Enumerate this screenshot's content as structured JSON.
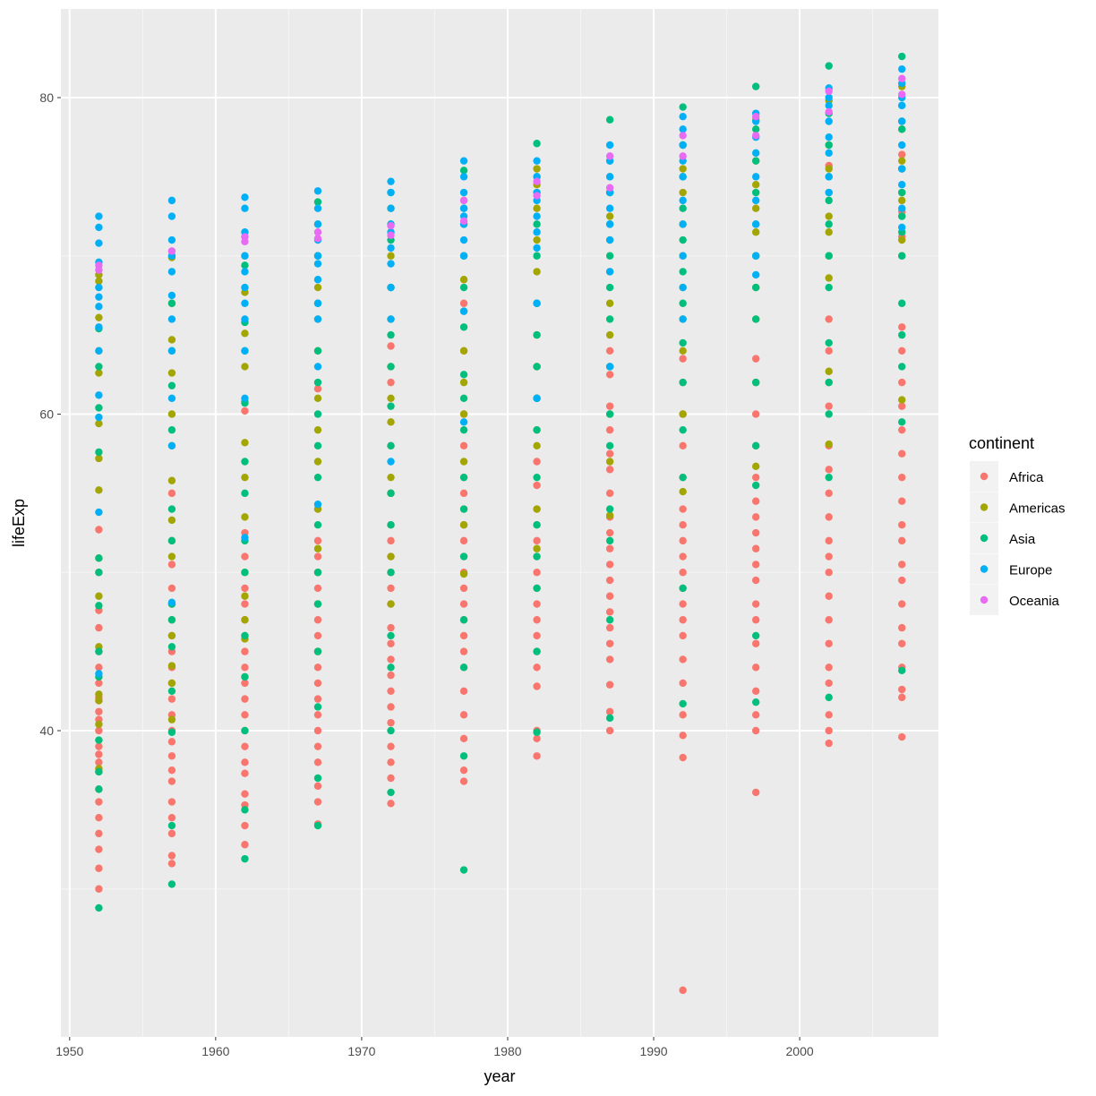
{
  "chart_data": {
    "type": "scatter",
    "title": "",
    "xlabel": "year",
    "ylabel": "lifeExp",
    "xlim": [
      1949.4,
      2009.5
    ],
    "ylim": [
      20.65,
      85.6
    ],
    "x_ticks": [
      1950,
      1960,
      1970,
      1980,
      1990,
      2000
    ],
    "y_ticks": [
      40,
      60,
      80
    ],
    "grid": true,
    "legend": {
      "title": "continent",
      "position": "right"
    },
    "years": [
      1952,
      1957,
      1962,
      1967,
      1972,
      1977,
      1982,
      1987,
      1992,
      1997,
      2002,
      2007
    ],
    "series": [
      {
        "name": "Africa",
        "color": "#F8766D",
        "points_by_year": {
          "1952": [
            30.0,
            31.3,
            32.5,
            33.5,
            34.5,
            35.5,
            36.3,
            37.4,
            38.0,
            38.5,
            39.0,
            40.0,
            40.7,
            41.2,
            41.9,
            42.1,
            43.0,
            44.0,
            45.0,
            46.5,
            47.6,
            50.0,
            52.7
          ],
          "1957": [
            31.6,
            32.1,
            33.5,
            34.5,
            35.5,
            36.8,
            37.5,
            38.4,
            39.3,
            40.0,
            41.0,
            42.0,
            43.0,
            44.0,
            45.0,
            46.0,
            47.0,
            48.0,
            49.0,
            50.5,
            52.0,
            55.0
          ],
          "1962": [
            32.8,
            34.0,
            35.3,
            36.0,
            37.3,
            38.0,
            39.0,
            40.0,
            41.0,
            42.0,
            43.0,
            44.0,
            45.0,
            46.0,
            47.0,
            48.0,
            49.0,
            51.0,
            52.5,
            60.2
          ],
          "1967": [
            34.1,
            35.5,
            36.5,
            38.0,
            39.0,
            40.0,
            41.0,
            42.0,
            43.0,
            44.0,
            45.0,
            46.0,
            47.0,
            48.0,
            49.0,
            50.0,
            51.0,
            52.0,
            54.0,
            61.6
          ],
          "1972": [
            35.4,
            37.0,
            38.0,
            39.0,
            40.5,
            41.5,
            42.5,
            43.5,
            44.5,
            45.5,
            46.5,
            48.0,
            49.0,
            50.0,
            51.0,
            52.0,
            53.0,
            55.0,
            58.0,
            62.0,
            64.3
          ],
          "1977": [
            36.8,
            37.5,
            39.5,
            41.0,
            42.5,
            44.0,
            45.0,
            46.0,
            47.0,
            48.0,
            49.0,
            50.0,
            51.0,
            52.0,
            53.0,
            54.0,
            55.0,
            56.0,
            58.0,
            60.0,
            64.0,
            67.0
          ],
          "1982": [
            38.4,
            39.5,
            40.0,
            42.8,
            44.0,
            45.0,
            46.0,
            47.0,
            48.0,
            49.0,
            50.0,
            51.0,
            52.0,
            53.0,
            54.0,
            55.5,
            57.0,
            59.0,
            61.0,
            63.0
          ],
          "1987": [
            40.0,
            41.2,
            42.9,
            44.5,
            45.5,
            46.5,
            47.5,
            48.5,
            49.5,
            50.5,
            51.5,
            52.5,
            53.5,
            55.0,
            56.5,
            57.5,
            59.0,
            60.5,
            62.5,
            64.0
          ],
          "1992": [
            23.6,
            38.3,
            39.7,
            41.0,
            43.0,
            44.5,
            46.0,
            47.0,
            48.0,
            49.0,
            50.0,
            51.0,
            52.0,
            53.0,
            54.0,
            56.0,
            58.0,
            60.0,
            62.0,
            63.5
          ],
          "1997": [
            36.1,
            40.0,
            41.0,
            42.5,
            44.0,
            45.5,
            47.0,
            48.0,
            49.5,
            50.5,
            51.5,
            52.5,
            53.5,
            54.5,
            56.0,
            58.0,
            60.0,
            63.5
          ],
          "2002": [
            39.2,
            40.0,
            41.0,
            43.0,
            44.0,
            45.5,
            47.0,
            48.5,
            50.0,
            51.0,
            52.0,
            53.5,
            55.0,
            56.5,
            58.0,
            60.5,
            62.0,
            64.0,
            66.0,
            75.7
          ],
          "2007": [
            39.6,
            42.1,
            42.6,
            44.0,
            45.5,
            46.5,
            48.0,
            49.5,
            50.5,
            52.0,
            53.0,
            54.5,
            56.0,
            57.5,
            59.0,
            60.5,
            62.0,
            64.0,
            65.5,
            71.2,
            72.8,
            76.4
          ]
        }
      },
      {
        "name": "Americas",
        "color": "#A3A500",
        "points_by_year": {
          "1952": [
            37.6,
            40.4,
            41.9,
            42.3,
            45.3,
            48.5,
            50.9,
            55.2,
            57.2,
            59.4,
            62.6,
            64.0,
            66.1,
            68.4,
            68.8
          ],
          "1957": [
            40.7,
            43.0,
            44.1,
            46.0,
            48.0,
            51.0,
            53.3,
            55.8,
            58.0,
            60.0,
            62.6,
            64.7,
            67.0,
            69.9,
            70.0
          ],
          "1962": [
            43.4,
            45.8,
            47.0,
            48.5,
            50.0,
            53.5,
            56.0,
            58.2,
            60.8,
            63.0,
            65.1,
            67.7,
            70.0
          ],
          "1967": [
            45.0,
            48.0,
            50.0,
            51.5,
            54.0,
            57.0,
            59.0,
            61.0,
            64.0,
            66.0,
            68.0,
            70.0,
            72.0
          ],
          "1972": [
            48.0,
            51.0,
            55.0,
            56.0,
            59.5,
            61.0,
            63.0,
            66.0,
            68.0,
            70.0,
            72.0,
            73.0
          ],
          "1977": [
            49.9,
            53.0,
            57.0,
            60.0,
            62.0,
            64.0,
            66.5,
            68.5,
            70.0,
            72.0,
            73.5
          ],
          "1982": [
            51.5,
            54.0,
            58.0,
            61.0,
            63.0,
            65.0,
            67.0,
            69.0,
            71.0,
            73.0,
            74.5,
            75.5
          ],
          "1987": [
            53.6,
            57.0,
            60.0,
            63.0,
            65.0,
            67.0,
            69.0,
            71.0,
            72.5,
            74.0,
            75.0
          ],
          "1992": [
            55.1,
            60.0,
            64.0,
            66.0,
            68.0,
            70.0,
            72.0,
            74.0,
            75.5,
            77.0
          ],
          "1997": [
            56.7,
            62.0,
            66.0,
            68.0,
            70.0,
            71.5,
            73.0,
            74.5,
            76.0,
            78.6
          ],
          "2002": [
            58.1,
            62.7,
            68.6,
            70.0,
            71.5,
            72.5,
            74.0,
            75.5,
            77.0,
            79.8
          ],
          "2007": [
            60.9,
            70.0,
            71.0,
            72.5,
            73.5,
            74.0,
            75.5,
            76.0,
            78.0,
            78.5,
            80.7
          ]
        }
      },
      {
        "name": "Asia",
        "color": "#00BF7D",
        "points_by_year": {
          "1952": [
            28.8,
            36.3,
            37.4,
            39.4,
            43.4,
            45.0,
            47.9,
            50.0,
            50.9,
            57.6,
            60.4,
            63.0,
            65.4
          ],
          "1957": [
            30.3,
            34.0,
            39.9,
            42.5,
            45.3,
            47.0,
            48.0,
            52.0,
            54.0,
            59.0,
            61.8,
            64.0,
            67.0
          ],
          "1962": [
            31.9,
            35.0,
            40.0,
            43.4,
            46.0,
            50.0,
            52.0,
            55.0,
            57.0,
            60.7,
            64.0,
            65.8,
            69.4
          ],
          "1967": [
            34.0,
            37.0,
            41.5,
            45.0,
            48.0,
            50.0,
            53.0,
            56.0,
            58.0,
            60.0,
            62.0,
            64.0,
            67.0,
            70.0,
            73.4
          ],
          "1972": [
            36.1,
            40.0,
            44.0,
            46.0,
            50.0,
            53.0,
            55.0,
            58.0,
            60.5,
            63.0,
            65.0,
            68.0,
            71.0,
            74.0
          ],
          "1977": [
            31.2,
            38.4,
            44.0,
            47.0,
            51.0,
            54.0,
            56.0,
            59.0,
            61.0,
            62.5,
            65.5,
            68.0,
            70.0,
            73.0,
            75.4
          ],
          "1982": [
            39.9,
            45.0,
            49.0,
            51.0,
            53.0,
            56.0,
            59.0,
            61.0,
            63.0,
            65.0,
            67.0,
            70.0,
            72.0,
            75.0,
            77.1
          ],
          "1987": [
            40.8,
            47.0,
            52.0,
            54.0,
            58.0,
            60.0,
            63.0,
            66.0,
            68.0,
            70.0,
            72.0,
            74.0,
            76.0,
            78.6
          ],
          "1992": [
            41.7,
            49.0,
            56.0,
            59.0,
            62.0,
            64.5,
            67.0,
            69.0,
            71.0,
            73.0,
            75.0,
            77.0,
            79.4
          ],
          "1997": [
            41.8,
            46.0,
            55.5,
            58.0,
            62.0,
            66.0,
            68.0,
            70.0,
            72.0,
            74.0,
            76.0,
            78.0,
            80.7
          ],
          "2002": [
            42.1,
            56.0,
            60.0,
            62.0,
            64.5,
            68.0,
            70.0,
            72.0,
            73.5,
            75.0,
            77.0,
            79.0,
            82.0
          ],
          "2007": [
            43.8,
            59.5,
            63.0,
            65.0,
            67.0,
            70.0,
            71.5,
            72.5,
            74.0,
            75.5,
            78.0,
            79.5,
            82.6
          ]
        }
      },
      {
        "name": "Europe",
        "color": "#00B0F6",
        "points_by_year": {
          "1952": [
            43.6,
            53.8,
            59.8,
            61.2,
            64.0,
            65.5,
            66.8,
            67.4,
            68.0,
            69.6,
            70.8,
            71.8,
            72.5
          ],
          "1957": [
            48.1,
            58.0,
            61.0,
            64.0,
            66.0,
            67.5,
            69.0,
            70.0,
            71.0,
            72.5,
            73.5
          ],
          "1962": [
            52.2,
            61.0,
            64.0,
            66.0,
            67.0,
            68.0,
            69.0,
            70.0,
            71.5,
            73.0,
            73.7
          ],
          "1967": [
            54.3,
            63.0,
            66.0,
            67.0,
            68.5,
            69.5,
            70.0,
            71.0,
            72.0,
            73.0,
            74.1
          ],
          "1972": [
            57.0,
            66.0,
            68.0,
            69.5,
            70.5,
            71.5,
            72.0,
            73.0,
            74.0,
            74.7
          ],
          "1977": [
            59.5,
            66.5,
            70.0,
            71.0,
            72.0,
            72.5,
            73.0,
            74.0,
            75.0,
            76.0
          ],
          "1982": [
            61.0,
            67.0,
            70.5,
            71.5,
            72.5,
            73.5,
            74.0,
            75.0,
            76.0
          ],
          "1987": [
            63.0,
            69.0,
            71.0,
            72.0,
            73.0,
            74.0,
            75.0,
            76.0,
            77.0
          ],
          "1992": [
            66.0,
            68.0,
            70.0,
            72.0,
            73.5,
            75.0,
            76.0,
            77.0,
            78.0,
            78.8
          ],
          "1997": [
            68.8,
            70.0,
            72.0,
            73.5,
            75.0,
            76.5,
            77.5,
            78.5,
            79.0
          ],
          "2002": [
            74.0,
            75.0,
            76.5,
            77.5,
            78.5,
            79.5,
            80.0,
            80.6
          ],
          "2007": [
            71.8,
            73.0,
            74.5,
            75.5,
            77.0,
            78.5,
            79.5,
            80.0,
            80.9,
            81.8
          ]
        }
      },
      {
        "name": "Oceania",
        "color": "#E76BF3",
        "points_by_year": {
          "1952": [
            69.1,
            69.4
          ],
          "1957": [
            70.3,
            70.3
          ],
          "1962": [
            70.9,
            71.2
          ],
          "1967": [
            71.1,
            71.5
          ],
          "1972": [
            71.9,
            71.3
          ],
          "1977": [
            72.2,
            73.5
          ],
          "1982": [
            73.8,
            74.7
          ],
          "1987": [
            74.3,
            76.3
          ],
          "1992": [
            76.3,
            77.6
          ],
          "1997": [
            77.6,
            78.8
          ],
          "2002": [
            79.1,
            80.4
          ],
          "2007": [
            80.2,
            81.2
          ]
        }
      }
    ]
  }
}
